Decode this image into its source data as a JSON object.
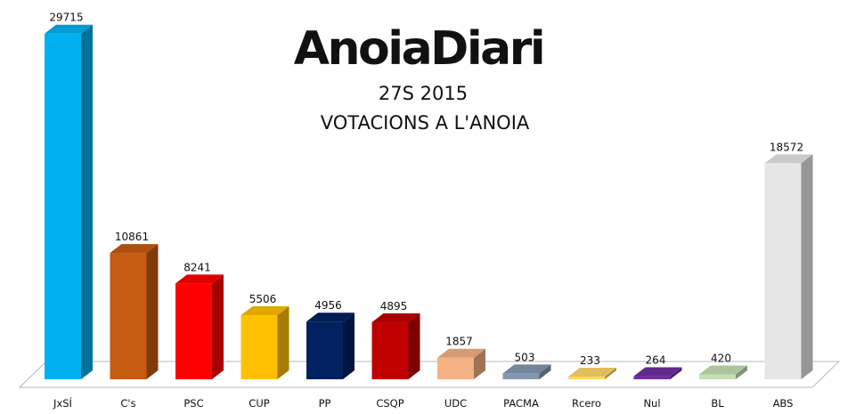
{
  "logo": {
    "text": "AnoiaDiari"
  },
  "chart_data": {
    "type": "bar",
    "title": "27S 2015",
    "subtitle": "VOTACIONS A L'ANOIA",
    "xlabel": "",
    "ylabel": "",
    "ylim": [
      0,
      30000
    ],
    "grid": false,
    "legend": "none",
    "style": "3d",
    "categories": [
      "JxSÍ",
      "C's",
      "PSC",
      "CUP",
      "PP",
      "CSQP",
      "UDC",
      "PACMA",
      "Rcero",
      "Nul",
      "BL",
      "ABS"
    ],
    "values": [
      29715,
      10861,
      8241,
      5506,
      4956,
      4895,
      1857,
      503,
      233,
      264,
      420,
      18572
    ],
    "data_labels": [
      "29715",
      "10861",
      "8241",
      "5506",
      "4956",
      "4895",
      "1857",
      "503",
      "233",
      "264",
      "420",
      "18572"
    ],
    "colors": [
      "#00b0f0",
      "#c55a11",
      "#ff0000",
      "#ffc000",
      "#002060",
      "#c00000",
      "#f4b183",
      "#8497b0",
      "#ffd966",
      "#7030a0",
      "#c5e0b4",
      "#e7e6e6"
    ]
  }
}
